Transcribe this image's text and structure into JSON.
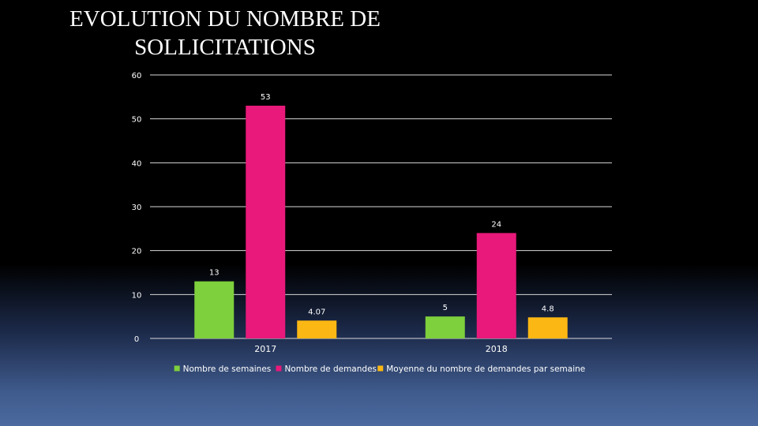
{
  "chart_data": {
    "type": "bar",
    "title": "EVOLUTION DU NOMBRE DE SOLLICITATIONS",
    "categories": [
      "2017",
      "2018"
    ],
    "series": [
      {
        "name": "Nombre de semaines",
        "values": [
          13,
          5
        ],
        "labels": [
          "13",
          "5"
        ],
        "color": "#7ed03c"
      },
      {
        "name": "Nombre de demandes",
        "values": [
          53,
          24
        ],
        "labels": [
          "53",
          "24"
        ],
        "color": "#e8197a"
      },
      {
        "name": "Moyenne du nombre de demandes par semaine",
        "values": [
          4.07,
          4.8
        ],
        "labels": [
          "4.07",
          "4.8"
        ],
        "color": "#fbb713"
      }
    ],
    "ylim": [
      0,
      60
    ],
    "yticks": [
      0,
      10,
      20,
      30,
      40,
      50,
      60
    ],
    "xlabel": "",
    "ylabel": "",
    "grid": true,
    "legend": "bottom"
  }
}
